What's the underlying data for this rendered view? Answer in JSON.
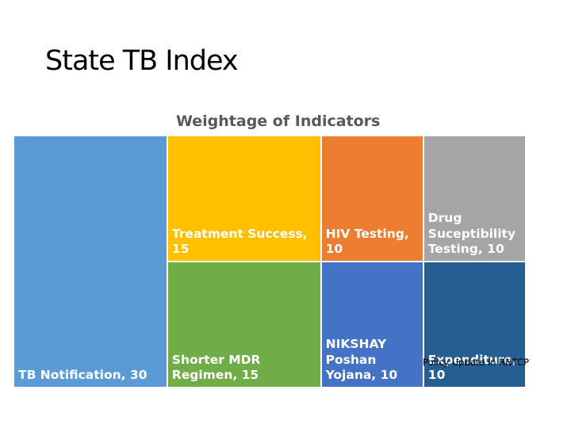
{
  "slide": {
    "title": "State TB Index",
    "note": "Policy Update in RNTCP"
  },
  "chart_data": {
    "type": "treemap",
    "title": "Weightage of Indicators",
    "nodes": [
      {
        "name": "TB Notification",
        "value": 30,
        "label": "TB Notification, 30",
        "color": "#5B9BD5"
      },
      {
        "name": "Treatment Success",
        "value": 15,
        "label": "Treatment Success, 15",
        "color": "#FFC000"
      },
      {
        "name": "Shorter MDR Regimen",
        "value": 15,
        "label": "Shorter MDR\nRegimen, 15",
        "color": "#70AD47"
      },
      {
        "name": "HIV Testing",
        "value": 10,
        "label": "HIV Testing,\n10",
        "color": "#ED7D31"
      },
      {
        "name": "Drug Suceptibility Testing",
        "value": 10,
        "label": "Drug\nSuceptibility\nTesting, 10",
        "color": "#A5A5A5"
      },
      {
        "name": "NIKSHAY Poshan Yojana",
        "value": 10,
        "label": "NIKSHAY\nPoshan\nYojana, 10",
        "color": "#4472C4"
      },
      {
        "name": "Expenditure",
        "value": 10,
        "label": "Expenditure,\n10",
        "color": "#255E91"
      }
    ]
  }
}
